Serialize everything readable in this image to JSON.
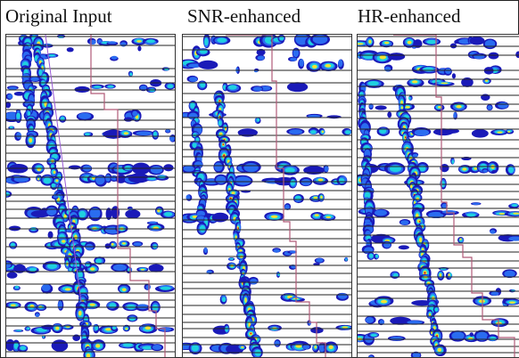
{
  "figure": {
    "panels": [
      {
        "id": "original",
        "title": "Original Input"
      },
      {
        "id": "snr",
        "title": "SNR-enhanced"
      },
      {
        "id": "hr",
        "title": "HR-enhanced"
      }
    ]
  },
  "colors": {
    "heat_low": "#1a1ab8",
    "heat_mid": "#1fd0e0",
    "heat_high": "#f2e233",
    "heat_peak": "#c8141e",
    "trace_line": "#b05a78",
    "grid_line": "#222222"
  }
}
